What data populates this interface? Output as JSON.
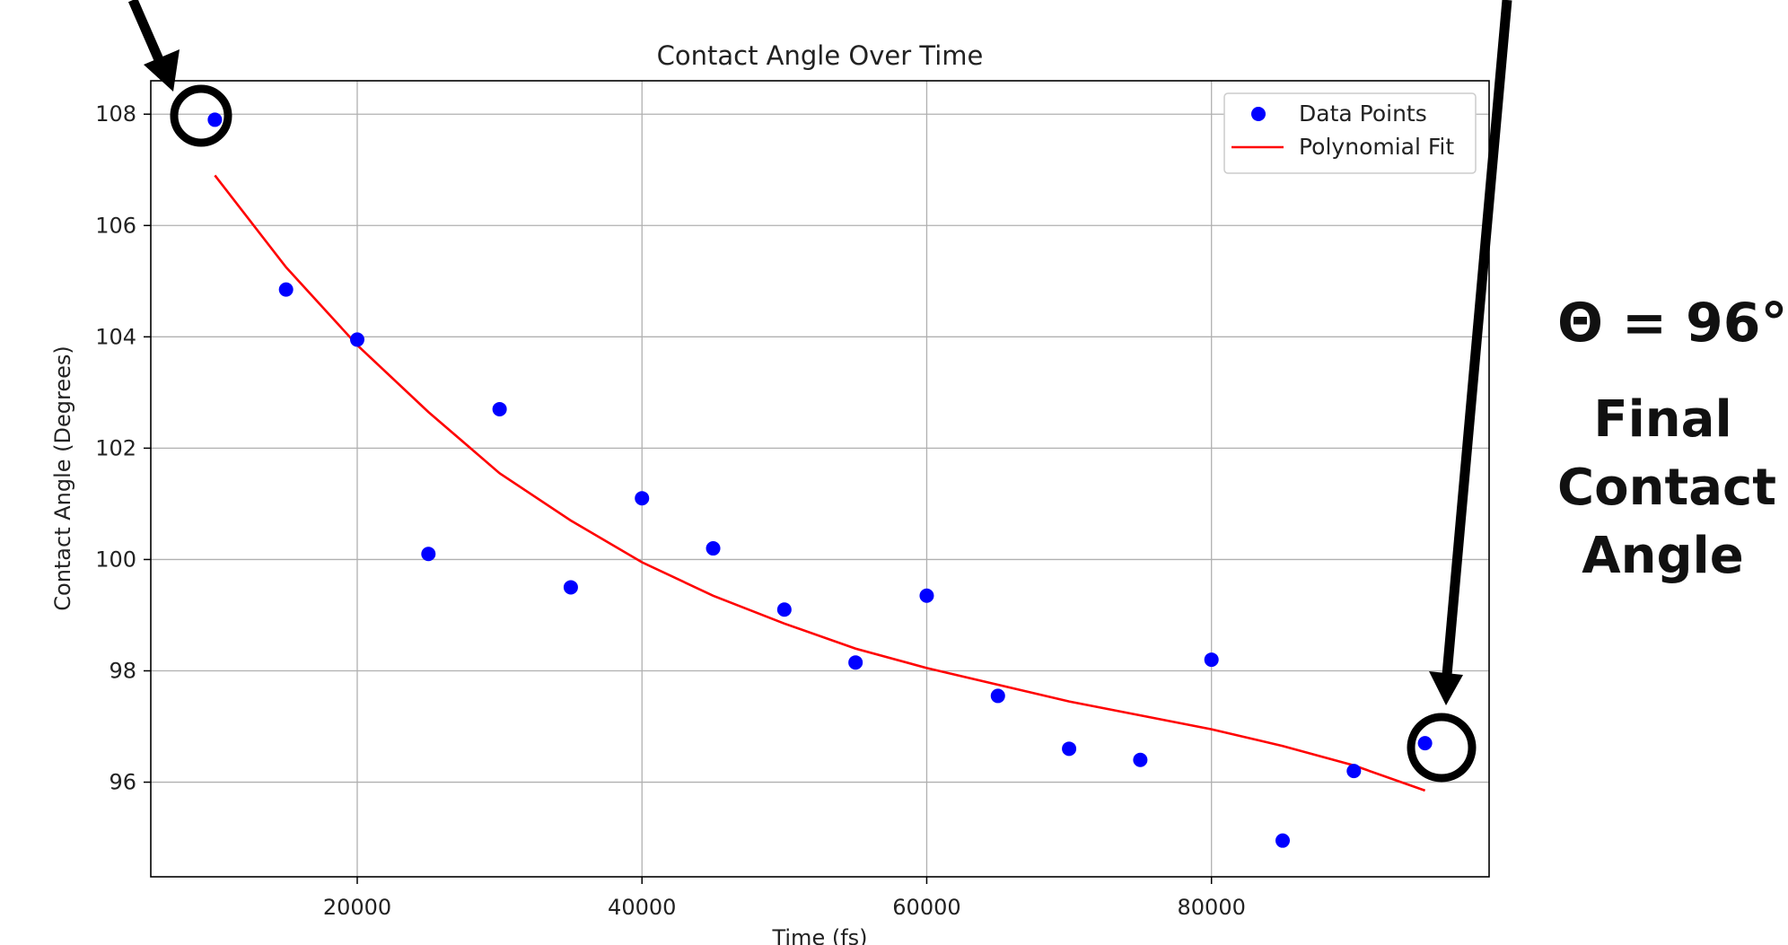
{
  "chart_data": {
    "type": "scatter",
    "title": "Contact Angle Over Time",
    "xlabel": "Time (fs)",
    "ylabel": "Contact Angle (Degrees)",
    "xlim": [
      5500,
      99500
    ],
    "ylim": [
      94.3,
      108.6
    ],
    "xticks": [
      20000,
      40000,
      60000,
      80000
    ],
    "yticks": [
      96,
      98,
      100,
      102,
      104,
      106,
      108
    ],
    "grid": true,
    "legend_position": "top-right",
    "series": [
      {
        "name": "Data Points",
        "type": "scatter",
        "color": "#0000ff",
        "x": [
          10000,
          15000,
          20000,
          25000,
          30000,
          35000,
          40000,
          45000,
          50000,
          55000,
          60000,
          65000,
          70000,
          75000,
          80000,
          85000,
          90000,
          95000
        ],
        "y": [
          107.9,
          104.85,
          103.95,
          100.1,
          102.7,
          99.5,
          101.1,
          100.2,
          99.1,
          98.15,
          99.35,
          97.55,
          96.6,
          96.4,
          98.2,
          94.95,
          96.2,
          96.7
        ]
      },
      {
        "name": "Polynomial Fit",
        "type": "line",
        "color": "#ff0000",
        "x": [
          10000,
          15000,
          20000,
          25000,
          30000,
          35000,
          40000,
          45000,
          50000,
          55000,
          60000,
          65000,
          70000,
          75000,
          80000,
          85000,
          90000,
          95000
        ],
        "y": [
          106.9,
          105.25,
          103.85,
          102.65,
          101.55,
          100.7,
          99.95,
          99.35,
          98.85,
          98.4,
          98.05,
          97.75,
          97.45,
          97.2,
          96.95,
          96.65,
          96.3,
          95.85
        ]
      }
    ]
  },
  "annotations": {
    "final_value": "Θ =  96°",
    "final_label": "Final Contact Angle"
  },
  "colors": {
    "axis": "#000000",
    "grid": "#b0b0b0",
    "text": "#222222",
    "callout": "#111111"
  }
}
